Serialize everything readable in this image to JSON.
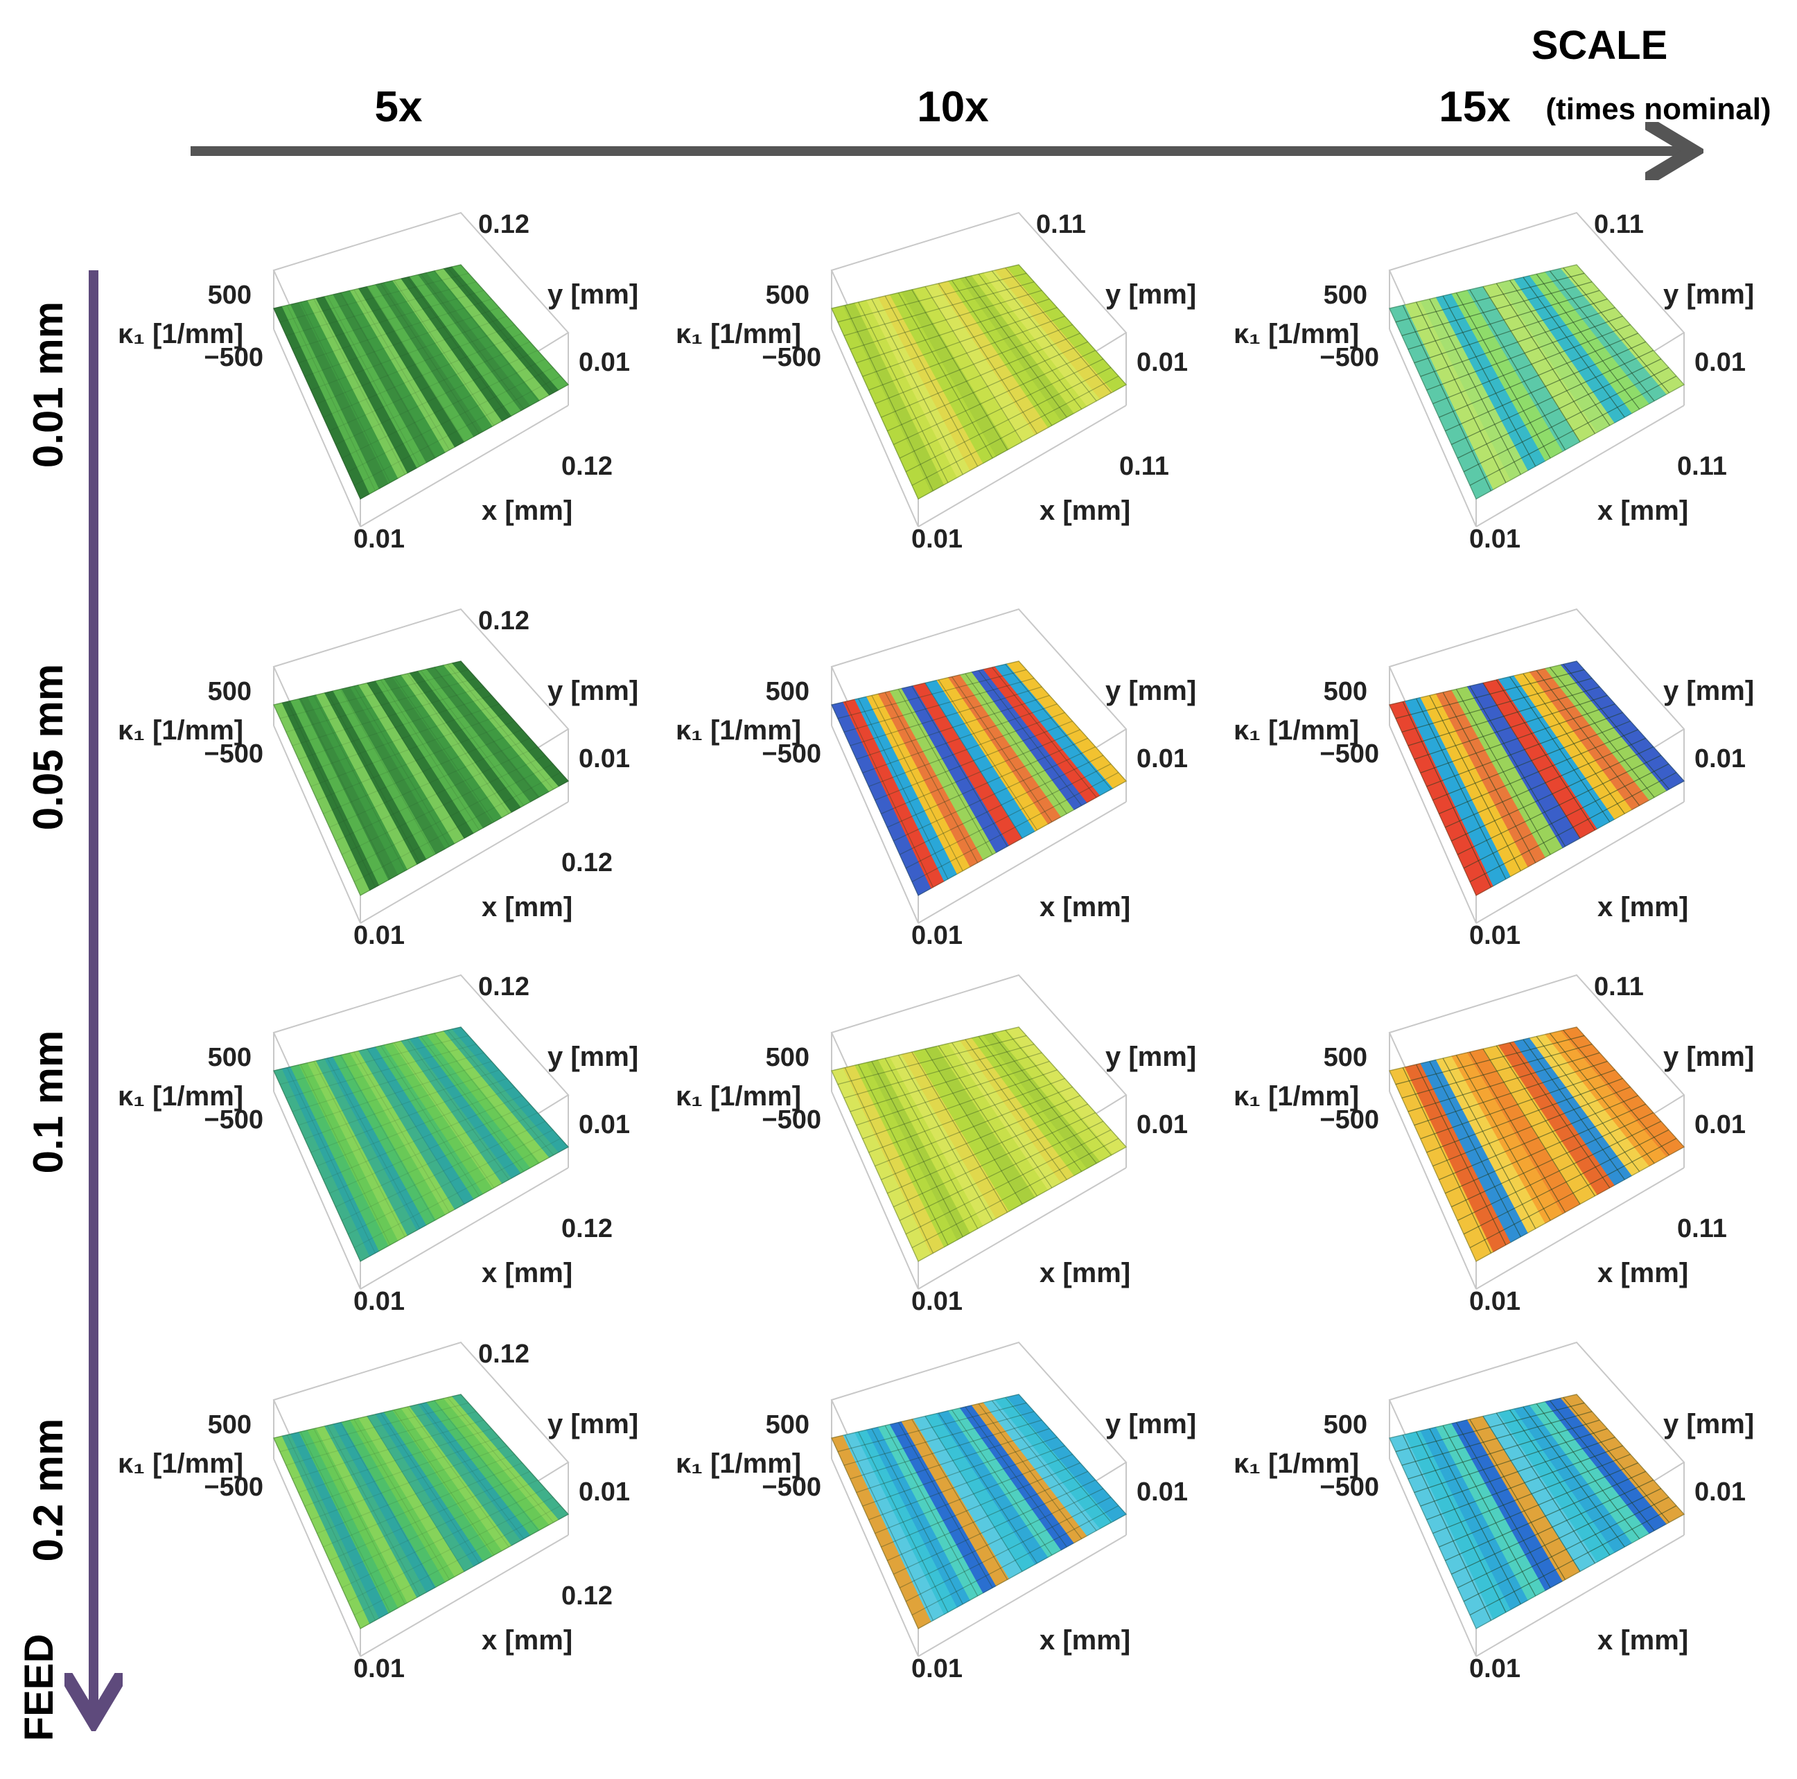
{
  "figure": {
    "scale_axis": {
      "title": "SCALE",
      "subtitle": "(times nominal)",
      "columns": [
        "5x",
        "10x",
        "15x"
      ]
    },
    "feed_axis": {
      "title": "FEED",
      "rows": [
        "0.01 mm",
        "0.05 mm",
        "0.1 mm",
        "0.2 mm"
      ]
    },
    "axis_labels": {
      "kappa": "κ₁ [1/mm]",
      "x": "x [mm]",
      "y": "y [mm]"
    },
    "z_ticks": [
      "500",
      "−500"
    ],
    "colors": {
      "arrow_scale": "#555555",
      "arrow_feed": "#5e4a7c",
      "box": "#c8c8c8"
    }
  },
  "plots": [
    {
      "row": 0,
      "col": 0,
      "y_max": "0.12",
      "y_min": "0.01",
      "x_max": "0.12",
      "x_min": "0.01",
      "palette": "dark-green",
      "texture": "noisy"
    },
    {
      "row": 0,
      "col": 1,
      "y_max": "0.11",
      "y_min": "0.01",
      "x_max": "0.11",
      "x_min": "0.01",
      "palette": "yellow-green",
      "texture": "ridged"
    },
    {
      "row": 0,
      "col": 2,
      "y_max": "0.11",
      "y_min": "0.01",
      "x_max": "0.11",
      "x_min": "0.01",
      "palette": "green-cyan",
      "texture": "smooth"
    },
    {
      "row": 1,
      "col": 0,
      "y_max": "0.12",
      "y_min": "0.01",
      "x_max": "0.12",
      "x_min": "0.01",
      "palette": "dark-green",
      "texture": "noisy"
    },
    {
      "row": 1,
      "col": 1,
      "y_max": "",
      "y_min": "0.01",
      "x_max": "",
      "x_min": "0.01",
      "palette": "rainbow",
      "texture": "ridged"
    },
    {
      "row": 1,
      "col": 2,
      "y_max": "",
      "y_min": "0.01",
      "x_max": "",
      "x_min": "0.01",
      "palette": "rainbow",
      "texture": "smooth"
    },
    {
      "row": 2,
      "col": 0,
      "y_max": "0.12",
      "y_min": "0.01",
      "x_max": "0.12",
      "x_min": "0.01",
      "palette": "green-teal",
      "texture": "noisy"
    },
    {
      "row": 2,
      "col": 1,
      "y_max": "",
      "y_min": "0.01",
      "x_max": "",
      "x_min": "0.01",
      "palette": "yellow-green",
      "texture": "ridged"
    },
    {
      "row": 2,
      "col": 2,
      "y_max": "0.11",
      "y_min": "0.01",
      "x_max": "0.11",
      "x_min": "0.01",
      "palette": "orange",
      "texture": "smooth"
    },
    {
      "row": 3,
      "col": 0,
      "y_max": "0.12",
      "y_min": "0.01",
      "x_max": "0.12",
      "x_min": "0.01",
      "palette": "green-teal",
      "texture": "noisy"
    },
    {
      "row": 3,
      "col": 1,
      "y_max": "",
      "y_min": "0.01",
      "x_max": "",
      "x_min": "0.01",
      "palette": "cyan-blue",
      "texture": "ridged"
    },
    {
      "row": 3,
      "col": 2,
      "y_max": "",
      "y_min": "0.01",
      "x_max": "",
      "x_min": "0.01",
      "palette": "cyan-blue",
      "texture": "smooth"
    }
  ]
}
